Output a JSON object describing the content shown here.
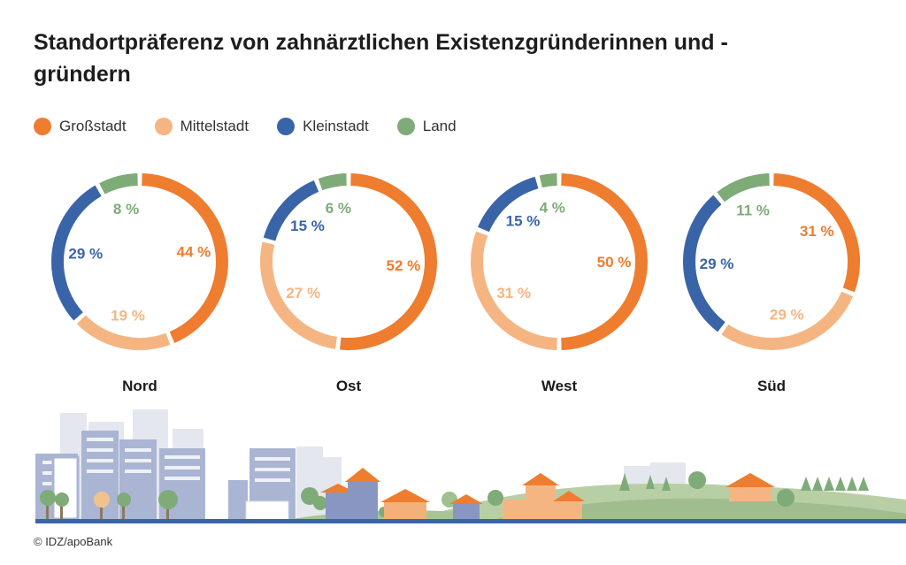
{
  "title": "Standortpräferenz von zahnärztlichen Existenzgründerinnen und -gründern",
  "legend": [
    {
      "label": "Großstadt",
      "color": "#ee7d2f"
    },
    {
      "label": "Mittelstadt",
      "color": "#f5b583"
    },
    {
      "label": "Kleinstadt",
      "color": "#3a64a8"
    },
    {
      "label": "Land",
      "color": "#7fab78"
    }
  ],
  "chart_data": {
    "type": "pie",
    "variant": "donut",
    "title": "Standortpräferenz von zahnärztlichen Existenzgründerinnen und -gründern",
    "categories": [
      "Großstadt",
      "Mittelstadt",
      "Kleinstadt",
      "Land"
    ],
    "colors": [
      "#ee7d2f",
      "#f5b583",
      "#3a64a8",
      "#7fab78"
    ],
    "series": [
      {
        "name": "Nord",
        "values": [
          44,
          19,
          29,
          8
        ],
        "labels": [
          "44 %",
          "19 %",
          "29 %",
          "8 %"
        ]
      },
      {
        "name": "Ost",
        "values": [
          52,
          27,
          15,
          6
        ],
        "labels": [
          "52 %",
          "27 %",
          "15 %",
          "6 %"
        ]
      },
      {
        "name": "West",
        "values": [
          50,
          31,
          15,
          4
        ],
        "labels": [
          "50 %",
          "31 %",
          "15 %",
          "4 %"
        ]
      },
      {
        "name": "Süd",
        "values": [
          31,
          29,
          29,
          11
        ],
        "labels": [
          "31 %",
          "29 %",
          "29 %",
          "11 %"
        ]
      }
    ]
  },
  "source": "© IDZ/apoBank"
}
